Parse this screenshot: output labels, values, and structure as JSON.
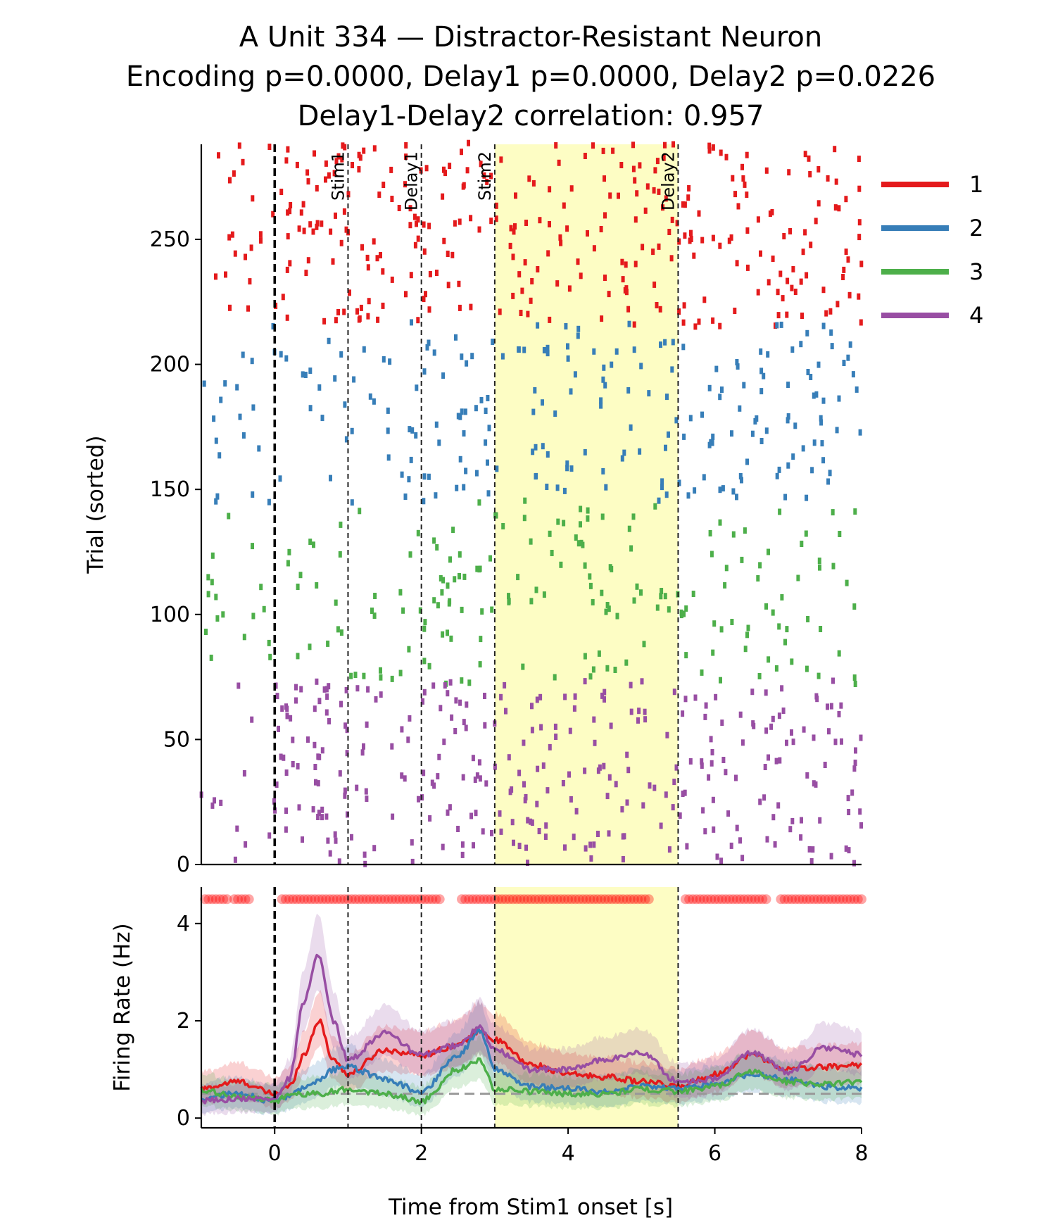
{
  "figure": {
    "title_lines": [
      "A Unit 334 — Distractor-Resistant Neuron",
      "Encoding p=0.0000, Delay1 p=0.0000, Delay2 p=0.0226",
      "Delay1-Delay2 correlation: 0.957"
    ]
  },
  "chart_data": [
    {
      "type": "scatter",
      "subtype": "raster",
      "panel": "raster",
      "xlim": [
        -1,
        8
      ],
      "ylim": [
        0,
        288
      ],
      "yticks": [
        0,
        50,
        100,
        150,
        200,
        250
      ],
      "xticks_visible": false,
      "xlabel": "",
      "ylabel": "Trial (sorted)",
      "event_lines": [
        {
          "x": 0,
          "label": "",
          "style": "thick-dashed",
          "color": "#000000"
        },
        {
          "x": 1,
          "label": "Stim1",
          "style": "dashed",
          "color": "#222222"
        },
        {
          "x": 2,
          "label": "Delay1",
          "style": "dashed",
          "color": "#222222"
        },
        {
          "x": 3,
          "label": "Stim2",
          "style": "dashed",
          "color": "#222222"
        },
        {
          "x": 5.5,
          "label": "Delay2",
          "style": "dashed",
          "color": "#222222"
        }
      ],
      "shaded_window": {
        "x0": 3,
        "x1": 5.5,
        "color": "#fdfdc4"
      },
      "groups": [
        {
          "name": "1",
          "color": "#e41a1c",
          "trial_range": [
            215,
            288
          ],
          "rate_profile": "high"
        },
        {
          "name": "2",
          "color": "#377eb8",
          "trial_range": [
            144,
            215
          ],
          "rate_profile": "medium"
        },
        {
          "name": "3",
          "color": "#4daf4a",
          "trial_range": [
            72,
            144
          ],
          "rate_profile": "low"
        },
        {
          "name": "4",
          "color": "#984ea3",
          "trial_range": [
            0,
            72
          ],
          "rate_profile": "high-early"
        }
      ]
    },
    {
      "type": "line",
      "panel": "psth",
      "xlim": [
        -1,
        8
      ],
      "ylim": [
        -0.2,
        4.75
      ],
      "xticks": [
        0,
        2,
        4,
        6,
        8
      ],
      "yticks": [
        0,
        2,
        4
      ],
      "xlabel": "Time from Stim1 onset [s]",
      "ylabel": "Firing Rate (Hz)",
      "baseline": 0.5,
      "x": [
        -1.0,
        -0.5,
        0.0,
        0.2,
        0.4,
        0.6,
        0.8,
        1.0,
        1.5,
        2.0,
        2.5,
        2.8,
        3.0,
        3.5,
        4.0,
        4.5,
        5.0,
        5.5,
        6.0,
        6.5,
        7.0,
        7.5,
        8.0
      ],
      "series": [
        {
          "name": "1",
          "color": "#e41a1c",
          "values": [
            0.6,
            0.75,
            0.5,
            0.65,
            1.3,
            2.0,
            1.2,
            0.9,
            1.4,
            1.3,
            1.5,
            1.8,
            1.6,
            1.1,
            0.9,
            0.85,
            0.75,
            0.65,
            0.9,
            1.3,
            1.0,
            1.05,
            1.1
          ]
        },
        {
          "name": "2",
          "color": "#377eb8",
          "values": [
            0.4,
            0.5,
            0.35,
            0.45,
            0.6,
            0.75,
            1.0,
            1.05,
            0.8,
            0.55,
            1.3,
            1.8,
            1.0,
            0.65,
            0.6,
            0.55,
            0.65,
            0.6,
            0.7,
            0.9,
            0.8,
            0.65,
            0.6
          ]
        },
        {
          "name": "3",
          "color": "#4daf4a",
          "values": [
            0.55,
            0.45,
            0.35,
            0.45,
            0.5,
            0.5,
            0.55,
            0.6,
            0.5,
            0.35,
            1.0,
            1.2,
            0.6,
            0.55,
            0.5,
            0.5,
            0.6,
            0.55,
            0.65,
            0.95,
            0.75,
            0.7,
            0.75
          ]
        },
        {
          "name": "4",
          "color": "#984ea3",
          "values": [
            0.35,
            0.4,
            0.4,
            0.8,
            2.4,
            3.35,
            2.0,
            1.2,
            1.75,
            1.3,
            1.5,
            1.85,
            1.4,
            1.0,
            1.0,
            1.2,
            1.35,
            0.75,
            0.8,
            1.35,
            0.95,
            1.45,
            1.3
          ]
        }
      ],
      "significance_marker_color": "#ff0000",
      "significant_intervals": [
        [
          -0.95,
          -0.65
        ],
        [
          -0.55,
          -0.35
        ],
        [
          0.1,
          2.25
        ],
        [
          2.55,
          5.1
        ],
        [
          5.6,
          6.7
        ],
        [
          6.9,
          8.0
        ]
      ],
      "event_lines": [
        0,
        1,
        2,
        3,
        5.5
      ],
      "shaded_window": {
        "x0": 3,
        "x1": 5.5,
        "color": "#fdfdc4"
      }
    }
  ],
  "legend": {
    "placement": "outside-right-top",
    "entries": [
      {
        "label": "1",
        "color": "#e41a1c"
      },
      {
        "label": "2",
        "color": "#377eb8"
      },
      {
        "label": "3",
        "color": "#4daf4a"
      },
      {
        "label": "4",
        "color": "#984ea3"
      }
    ]
  }
}
